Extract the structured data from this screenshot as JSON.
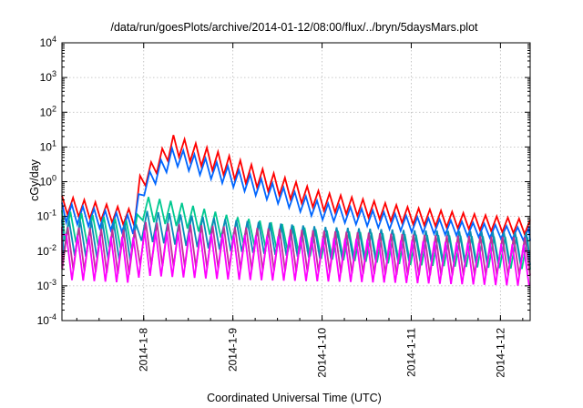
{
  "chart_data": {
    "type": "line",
    "title": "/data/run/goesPlots/archive/2014-01-12/08:00/flux/../bryn/5daysMars.plot",
    "xlabel": "Coordinated Universal Time (UTC)",
    "ylabel": "cGy/day",
    "x_range": [
      "2014-01-07T02:00",
      "2014-01-12T08:00"
    ],
    "ylim": [
      0.0001,
      10000
    ],
    "y_scale": "log",
    "grid": true,
    "x_ticks": [
      "2014-1-8",
      "2014-1-9",
      "2014-1-10",
      "2014-1-11",
      "2014-1-12"
    ],
    "y_ticks": [
      {
        "base": "10",
        "exp": "-4",
        "value": 0.0001
      },
      {
        "base": "10",
        "exp": "-3",
        "value": 0.001
      },
      {
        "base": "10",
        "exp": "-2",
        "value": 0.01
      },
      {
        "base": "10",
        "exp": "-1",
        "value": 0.1
      },
      {
        "base": "10",
        "exp": "0",
        "value": 1
      },
      {
        "base": "10",
        "exp": "1",
        "value": 10
      },
      {
        "base": "10",
        "exp": "2",
        "value": 100
      },
      {
        "base": "10",
        "exp": "3",
        "value": 1000
      },
      {
        "base": "10",
        "exp": "4",
        "value": 10000
      }
    ],
    "oscillation_period_hours": 3,
    "series_envelope_note": "each series oscillates in a sawtooth; values below are envelope peaks (hi) and troughs (lo) at key times",
    "series": [
      {
        "color": "#ff0000",
        "envelope": [
          {
            "t": "2014-01-07T02:00",
            "hi": 0.4,
            "lo": 0.12
          },
          {
            "t": "2014-01-07T22:00",
            "hi": 0.15,
            "lo": 0.05
          },
          {
            "t": "2014-01-07T23:00",
            "hi": 1.5,
            "lo": 0.5
          },
          {
            "t": "2014-01-08T08:00",
            "hi": 22,
            "lo": 6
          },
          {
            "t": "2014-01-09T00:00",
            "hi": 5,
            "lo": 1.2
          },
          {
            "t": "2014-01-10T00:00",
            "hi": 0.5,
            "lo": 0.15
          },
          {
            "t": "2014-01-11T00:00",
            "hi": 0.18,
            "lo": 0.06
          },
          {
            "t": "2014-01-12T08:00",
            "hi": 0.08,
            "lo": 0.03
          }
        ]
      },
      {
        "color": "#0066ff",
        "envelope": [
          {
            "t": "2014-01-07T02:00",
            "hi": 0.25,
            "lo": 0.07
          },
          {
            "t": "2014-01-07T22:00",
            "hi": 0.1,
            "lo": 0.03
          },
          {
            "t": "2014-01-07T23:00",
            "hi": 1,
            "lo": 0.3
          },
          {
            "t": "2014-01-08T08:00",
            "hi": 10,
            "lo": 3
          },
          {
            "t": "2014-01-09T00:00",
            "hi": 2.5,
            "lo": 0.7
          },
          {
            "t": "2014-01-10T00:00",
            "hi": 0.25,
            "lo": 0.08
          },
          {
            "t": "2014-01-11T00:00",
            "hi": 0.1,
            "lo": 0.035
          },
          {
            "t": "2014-01-12T08:00",
            "hi": 0.045,
            "lo": 0.02
          }
        ]
      },
      {
        "color": "#00c890",
        "envelope": [
          {
            "t": "2014-01-07T02:00",
            "hi": 0.15,
            "lo": 0.02
          },
          {
            "t": "2014-01-07T22:00",
            "hi": 0.07,
            "lo": 0.01
          },
          {
            "t": "2014-01-07T23:00",
            "hi": 0.4,
            "lo": 0.08
          },
          {
            "t": "2014-01-08T10:00",
            "hi": 0.25,
            "lo": 0.05
          },
          {
            "t": "2014-01-09T00:00",
            "hi": 0.1,
            "lo": 0.02
          },
          {
            "t": "2014-01-10T00:00",
            "hi": 0.04,
            "lo": 0.006
          },
          {
            "t": "2014-01-11T00:00",
            "hi": 0.03,
            "lo": 0.004
          },
          {
            "t": "2014-01-12T08:00",
            "hi": 0.025,
            "lo": 0.003
          }
        ]
      },
      {
        "color": "#0a8cb8",
        "envelope": [
          {
            "t": "2014-01-07T02:00",
            "hi": 0.08,
            "lo": 0.008
          },
          {
            "t": "2014-01-07T22:00",
            "hi": 0.06,
            "lo": 0.005
          },
          {
            "t": "2014-01-07T23:00",
            "hi": 0.15,
            "lo": 0.02
          },
          {
            "t": "2014-01-09T00:00",
            "hi": 0.08,
            "lo": 0.01
          },
          {
            "t": "2014-01-10T00:00",
            "hi": 0.05,
            "lo": 0.006
          },
          {
            "t": "2014-01-11T00:00",
            "hi": 0.04,
            "lo": 0.005
          },
          {
            "t": "2014-01-12T08:00",
            "hi": 0.035,
            "lo": 0.004
          }
        ]
      },
      {
        "color": "#c0309a",
        "envelope": [
          {
            "t": "2014-01-07T02:00",
            "hi": 0.05,
            "lo": 0.003
          },
          {
            "t": "2014-01-07T22:00",
            "hi": 0.04,
            "lo": 0.002
          },
          {
            "t": "2014-01-07T23:00",
            "hi": 0.07,
            "lo": 0.004
          },
          {
            "t": "2014-01-09T00:00",
            "hi": 0.05,
            "lo": 0.003
          },
          {
            "t": "2014-01-11T00:00",
            "hi": 0.03,
            "lo": 0.002
          },
          {
            "t": "2014-01-12T08:00",
            "hi": 0.025,
            "lo": 0.002
          }
        ]
      },
      {
        "color": "#ff00ff",
        "envelope": [
          {
            "t": "2014-01-07T02:00",
            "hi": 0.03,
            "lo": 0.0015
          },
          {
            "t": "2014-01-07T22:00",
            "hi": 0.025,
            "lo": 0.0012
          },
          {
            "t": "2014-01-07T23:00",
            "hi": 0.04,
            "lo": 0.002
          },
          {
            "t": "2014-01-09T00:00",
            "hi": 0.03,
            "lo": 0.0015
          },
          {
            "t": "2014-01-11T00:00",
            "hi": 0.02,
            "lo": 0.0012
          },
          {
            "t": "2014-01-12T08:00",
            "hi": 0.015,
            "lo": 0.001
          }
        ]
      }
    ]
  }
}
